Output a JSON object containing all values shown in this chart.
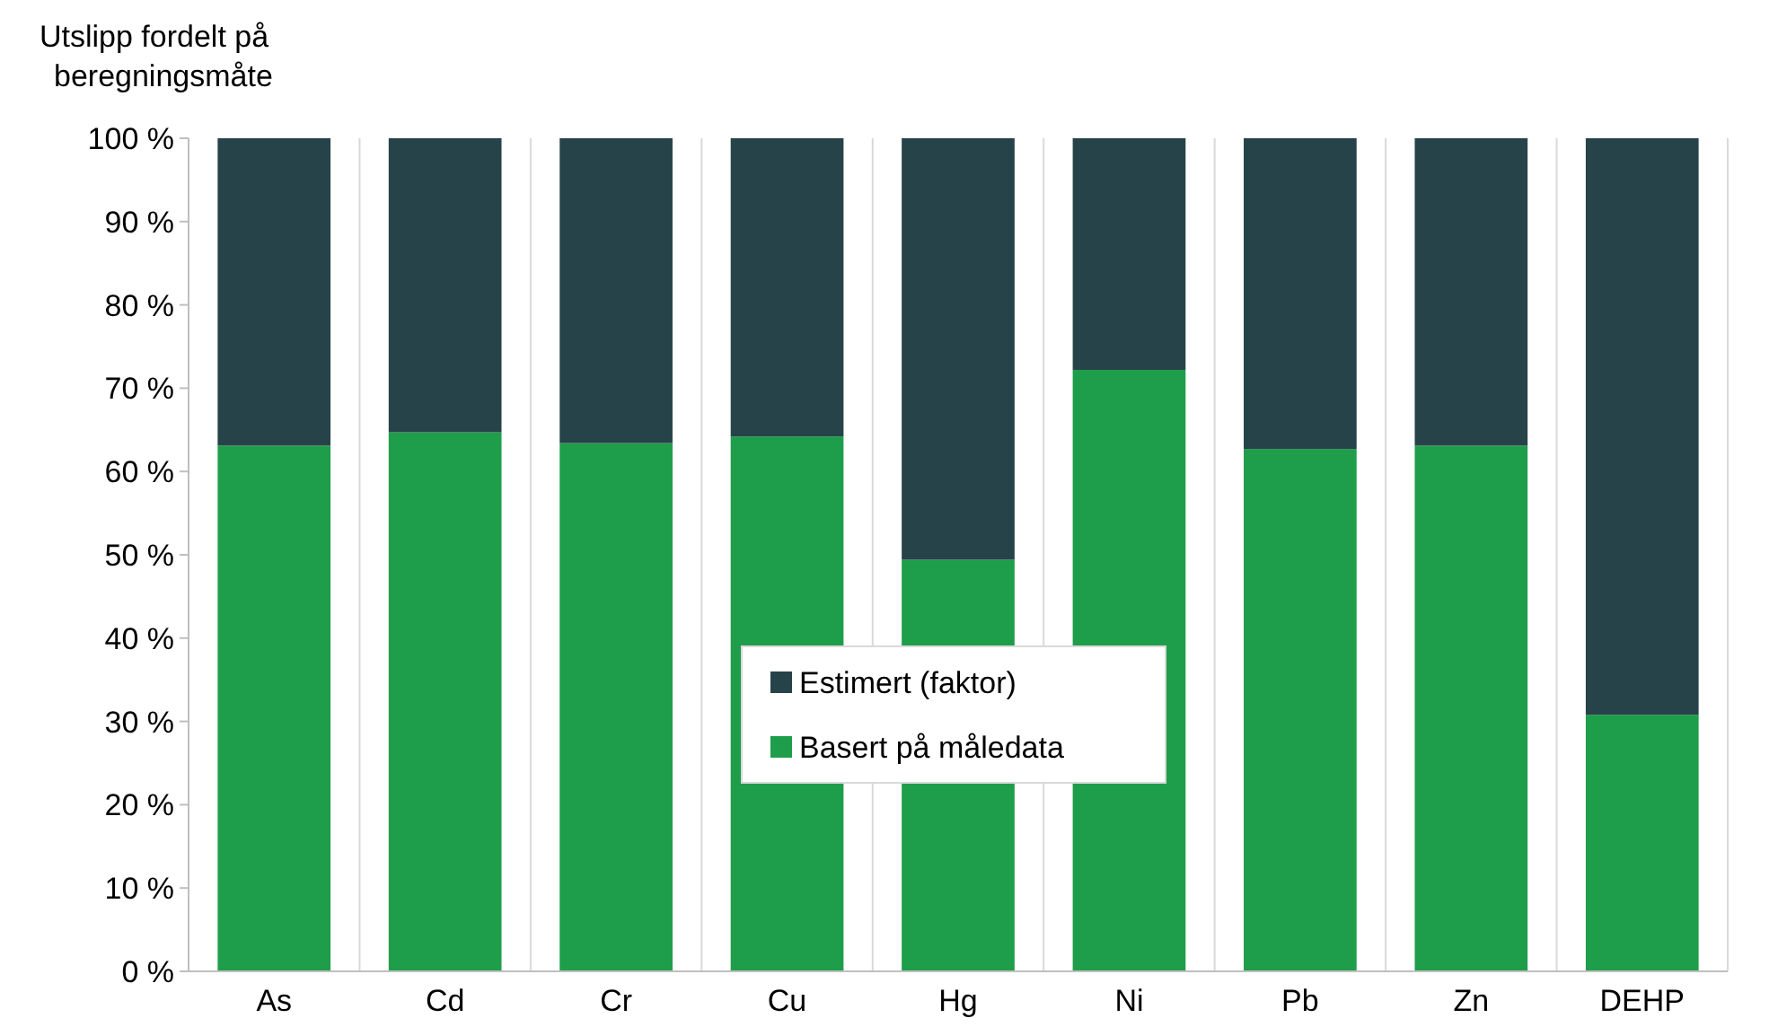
{
  "chart_data": {
    "type": "bar",
    "stacked": true,
    "ylabel": "Utslipp fordelt på beregningsmåte",
    "categories": [
      "As",
      "Cd",
      "Cr",
      "Cu",
      "Hg",
      "Ni",
      "Pb",
      "Zn",
      "DEHP"
    ],
    "series": [
      {
        "name": "Basert på måledata",
        "color": "#1e9e4a",
        "values": [
          63.1,
          64.7,
          63.4,
          64.2,
          49.4,
          72.2,
          62.7,
          63.1,
          30.8
        ]
      },
      {
        "name": "Estimert (faktor)",
        "color": "#27434a",
        "values": [
          36.9,
          35.3,
          36.6,
          35.8,
          50.6,
          27.8,
          37.3,
          36.9,
          69.2
        ]
      }
    ],
    "ylim": [
      0,
      100
    ],
    "yticks": [
      {
        "value": 0,
        "label": "0 %"
      },
      {
        "value": 10,
        "label": "10 %"
      },
      {
        "value": 20,
        "label": "20 %"
      },
      {
        "value": 30,
        "label": "30 %"
      },
      {
        "value": 40,
        "label": "40 %"
      },
      {
        "value": 50,
        "label": "50 %"
      },
      {
        "value": 60,
        "label": "60 %"
      },
      {
        "value": 70,
        "label": "70 %"
      },
      {
        "value": 80,
        "label": "80 %"
      },
      {
        "value": 90,
        "label": "90 %"
      },
      {
        "value": 100,
        "label": "100 %"
      }
    ],
    "grid": "x",
    "legend": "center"
  }
}
